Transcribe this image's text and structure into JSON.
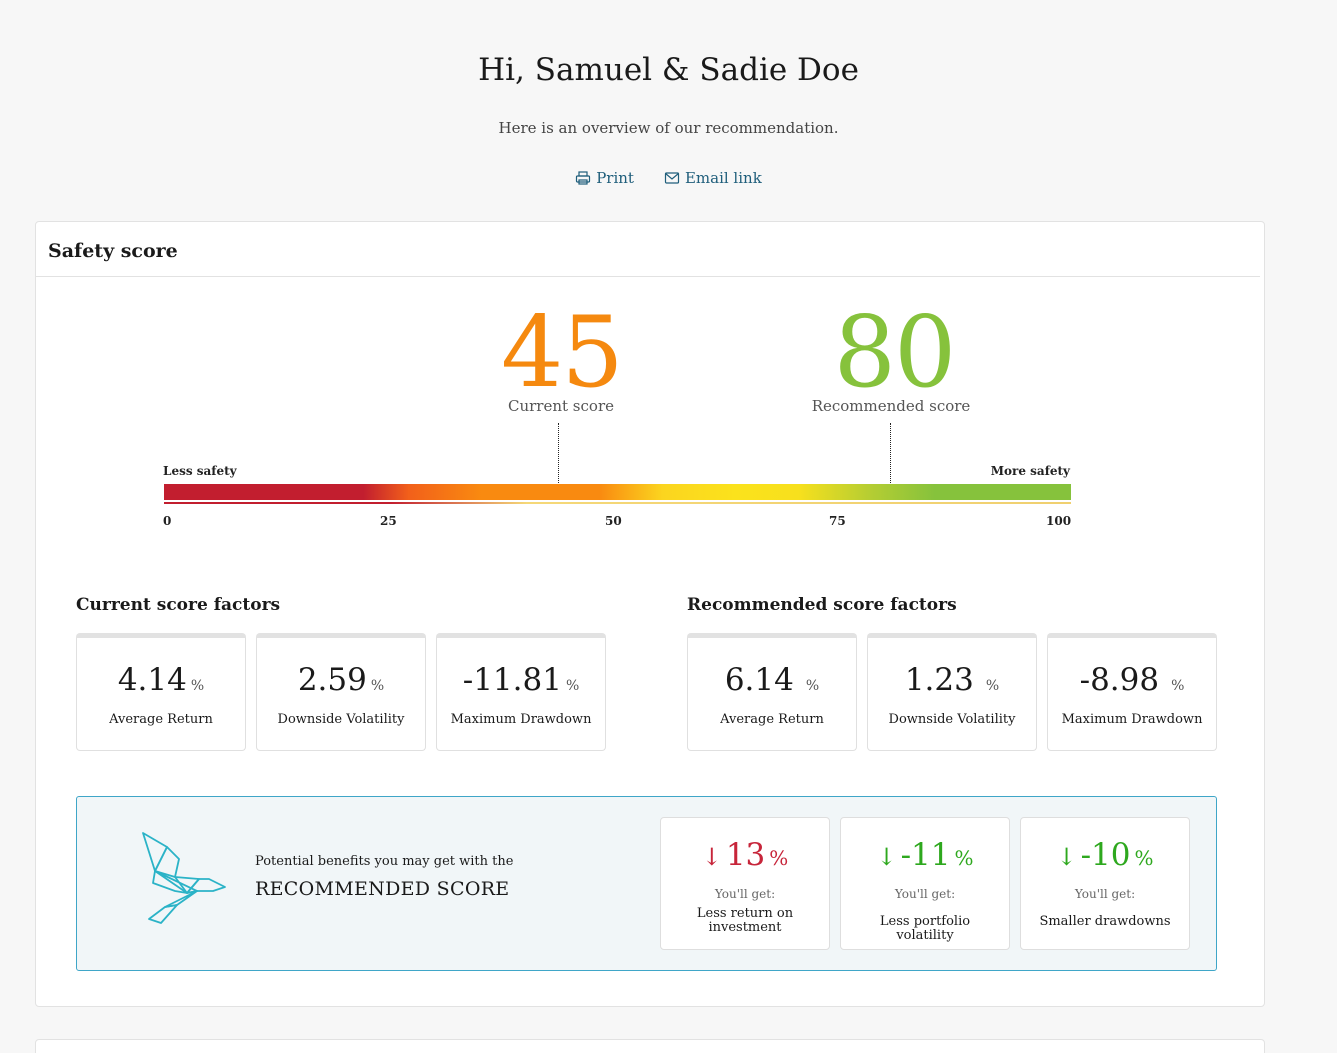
{
  "header": {
    "greeting": "Hi, Samuel & Sadie Doe",
    "subtitle": "Here is an overview of our recommendation.",
    "print_label": "Print",
    "email_label": "Email link"
  },
  "safety": {
    "title": "Safety score",
    "current_score": "45",
    "current_label": "Current score",
    "recommended_score": "80",
    "recommended_label": "Recommended score",
    "scale_left": "Less safety",
    "scale_right": "More safety",
    "ticks": [
      "0",
      "25",
      "50",
      "75",
      "100"
    ],
    "current_value": 45,
    "recommended_value": 80
  },
  "current_factors": {
    "title": "Current score factors",
    "items": [
      {
        "value": "4.14",
        "unit": "%",
        "label": "Average Return"
      },
      {
        "value": "2.59",
        "unit": "%",
        "label": "Downside Volatility"
      },
      {
        "value": "-11.81",
        "unit": "%",
        "label": "Maximum Drawdown"
      }
    ]
  },
  "recommended_factors": {
    "title": "Recommended score factors",
    "items": [
      {
        "value": "6.14",
        "unit": "%",
        "label": "Average Return"
      },
      {
        "value": "1.23",
        "unit": "%",
        "label": "Downside Volatility"
      },
      {
        "value": "-8.98",
        "unit": "%",
        "label": "Maximum Drawdown"
      }
    ]
  },
  "benefits": {
    "intro": "Potential benefits you may get with the",
    "heading": "RECOMMENDED SCORE",
    "items": [
      {
        "value": "13",
        "unit": "%",
        "get": "You'll get:",
        "desc": "Less return on investment",
        "color": "#c7253a"
      },
      {
        "value": "-11",
        "unit": "%",
        "get": "You'll get:",
        "desc": "Less portfolio volatility",
        "color": "#2ea81e"
      },
      {
        "value": "-10",
        "unit": "%",
        "get": "You'll get:",
        "desc": "Smaller drawdowns",
        "color": "#2ea81e"
      }
    ]
  },
  "colors": {
    "current": "#f5890f",
    "recommended": "#86c23c",
    "link": "#1f5e7b",
    "accent_border": "#3fa6c8"
  },
  "icons": {
    "print": "printer-icon",
    "email": "email-icon",
    "bird": "origami-bird-icon",
    "arrow": "arrow-down-icon"
  }
}
